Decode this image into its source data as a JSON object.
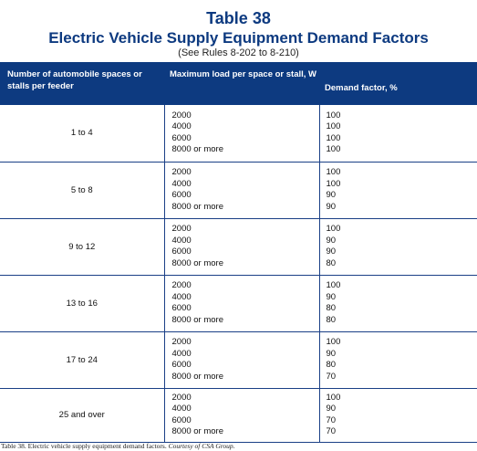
{
  "title": "Table 38",
  "subtitle": "Electric Vehicle Supply Equipment Demand Factors",
  "reference": "(See Rules 8-202 to 8-210)",
  "headers": {
    "col1": "Number of automobile spaces or stalls per feeder",
    "col2": "Maximum load per space or stall, W",
    "col3": "Demand factor, %"
  },
  "rows": [
    {
      "group": "1 to 4",
      "loads": [
        "2000",
        "4000",
        "6000",
        "8000 or more"
      ],
      "factors": [
        "100",
        "100",
        "100",
        "100"
      ]
    },
    {
      "group": "5 to 8",
      "loads": [
        "2000",
        "4000",
        "6000",
        "8000 or more"
      ],
      "factors": [
        "100",
        "100",
        "90",
        "90"
      ]
    },
    {
      "group": "9 to 12",
      "loads": [
        "2000",
        "4000",
        "6000",
        "8000 or more"
      ],
      "factors": [
        "100",
        "90",
        "90",
        "80"
      ]
    },
    {
      "group": "13 to 16",
      "loads": [
        "2000",
        "4000",
        "6000",
        "8000 or more"
      ],
      "factors": [
        "100",
        "90",
        "80",
        "80"
      ]
    },
    {
      "group": "17 to 24",
      "loads": [
        "2000",
        "4000",
        "6000",
        "8000 or more"
      ],
      "factors": [
        "100",
        "90",
        "80",
        "70"
      ]
    },
    {
      "group": "25 and over",
      "loads": [
        "2000",
        "4000",
        "6000",
        "8000 or more"
      ],
      "factors": [
        "100",
        "90",
        "70",
        "70"
      ]
    }
  ],
  "caption": {
    "text": "Table 38. Electric vehicle supply equipment demand factors.",
    "credit": "Courtesy of CSA Group."
  },
  "colors": {
    "accent": "#0d3a80"
  }
}
